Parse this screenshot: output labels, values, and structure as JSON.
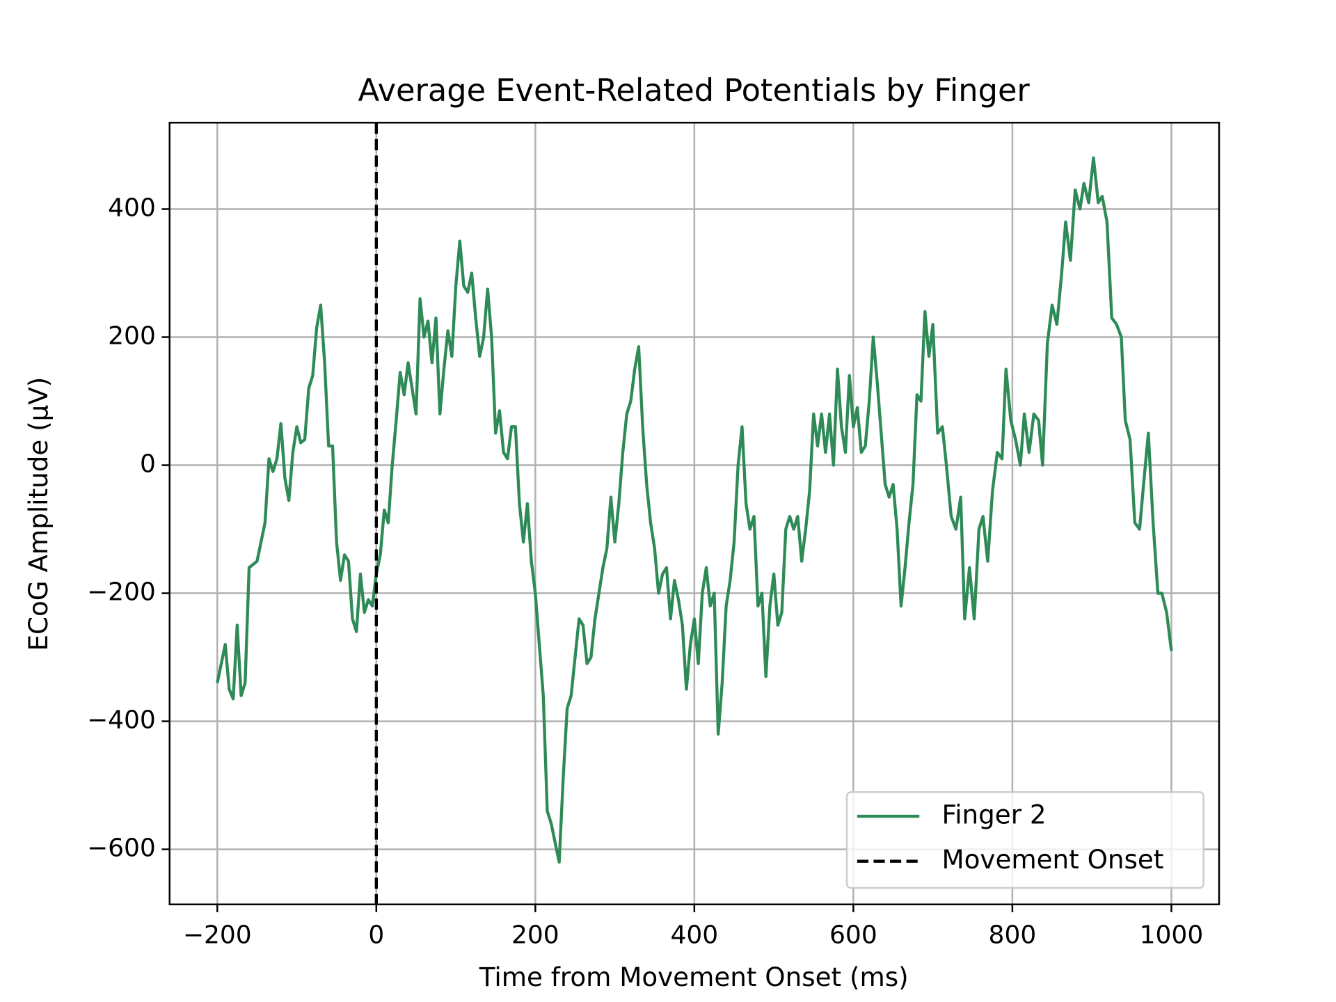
{
  "chart_data": {
    "type": "line",
    "title": "Average Event-Related Potentials by Finger",
    "x_label": "Time from Movement Onset (ms)",
    "y_label": "ECoG Amplitude (µV)",
    "x": [
      -200,
      -190,
      -185,
      -180,
      -175,
      -170,
      -165,
      -160,
      -150,
      -140,
      -135,
      -130,
      -125,
      -120,
      -115,
      -110,
      -105,
      -100,
      -95,
      -90,
      -85,
      -80,
      -75,
      -70,
      -65,
      -60,
      -55,
      -50,
      -45,
      -40,
      -35,
      -30,
      -25,
      -20,
      -15,
      -10,
      -5,
      0,
      5,
      10,
      15,
      20,
      25,
      30,
      35,
      40,
      45,
      50,
      55,
      60,
      65,
      70,
      75,
      80,
      85,
      90,
      95,
      100,
      105,
      110,
      115,
      120,
      125,
      130,
      135,
      140,
      145,
      150,
      155,
      160,
      165,
      170,
      175,
      180,
      185,
      190,
      195,
      200,
      205,
      210,
      215,
      220,
      225,
      230,
      235,
      240,
      245,
      250,
      255,
      260,
      265,
      270,
      275,
      280,
      285,
      290,
      295,
      300,
      305,
      310,
      315,
      320,
      325,
      330,
      335,
      340,
      345,
      350,
      355,
      360,
      365,
      370,
      375,
      380,
      385,
      390,
      395,
      400,
      405,
      410,
      415,
      420,
      425,
      430,
      435,
      440,
      445,
      450,
      455,
      460,
      465,
      470,
      475,
      480,
      485,
      490,
      495,
      500,
      505,
      510,
      515,
      520,
      525,
      530,
      535,
      540,
      545,
      550,
      555,
      560,
      565,
      570,
      575,
      580,
      585,
      590,
      595,
      600,
      605,
      610,
      615,
      620,
      625,
      630,
      635,
      640,
      645,
      650,
      655,
      660,
      665,
      670,
      675,
      680,
      685,
      690,
      695,
      700,
      706,
      712,
      717,
      723,
      729,
      735,
      740,
      746,
      752,
      758,
      763,
      769,
      775,
      781,
      787,
      792,
      798,
      804,
      810,
      815,
      821,
      827,
      833,
      838,
      844,
      850,
      856,
      862,
      867,
      873,
      879,
      885,
      890,
      896,
      902,
      908,
      913,
      919,
      925,
      931,
      937,
      942,
      948,
      954,
      960,
      965,
      971,
      977,
      983,
      988,
      994,
      1000
    ],
    "series": [
      {
        "name": "Finger 2",
        "color": "#2e8b57",
        "values": [
          -340,
          -280,
          -350,
          -365,
          -250,
          -360,
          -340,
          -160,
          -150,
          -90,
          10,
          -10,
          10,
          65,
          -20,
          -55,
          20,
          60,
          35,
          40,
          120,
          140,
          215,
          250,
          160,
          30,
          30,
          -120,
          -180,
          -140,
          -150,
          -240,
          -260,
          -170,
          -230,
          -210,
          -220,
          -170,
          -140,
          -70,
          -90,
          0,
          70,
          145,
          110,
          160,
          120,
          80,
          260,
          200,
          225,
          160,
          230,
          80,
          150,
          210,
          170,
          280,
          350,
          280,
          270,
          300,
          230,
          170,
          200,
          275,
          200,
          50,
          85,
          20,
          10,
          60,
          60,
          -60,
          -120,
          -60,
          -150,
          -200,
          -280,
          -360,
          -540,
          -560,
          -590,
          -620,
          -490,
          -380,
          -360,
          -300,
          -240,
          -250,
          -310,
          -300,
          -240,
          -200,
          -160,
          -130,
          -50,
          -120,
          -60,
          20,
          80,
          100,
          150,
          185,
          60,
          -30,
          -90,
          -130,
          -200,
          -170,
          -160,
          -240,
          -180,
          -210,
          -250,
          -350,
          -280,
          -240,
          -310,
          -200,
          -160,
          -220,
          -200,
          -420,
          -340,
          -220,
          -180,
          -120,
          0,
          60,
          -60,
          -100,
          -80,
          -220,
          -200,
          -330,
          -220,
          -170,
          -250,
          -230,
          -100,
          -80,
          -100,
          -80,
          -150,
          -100,
          -40,
          80,
          30,
          80,
          20,
          80,
          0,
          150,
          60,
          20,
          140,
          60,
          90,
          20,
          30,
          100,
          200,
          130,
          50,
          -30,
          -50,
          -30,
          -100,
          -220,
          -160,
          -90,
          -30,
          110,
          100,
          240,
          170,
          220,
          50,
          60,
          0,
          -80,
          -100,
          -50,
          -240,
          -160,
          -240,
          -100,
          -80,
          -150,
          -40,
          20,
          10,
          150,
          70,
          40,
          0,
          80,
          20,
          80,
          70,
          0,
          190,
          250,
          220,
          300,
          380,
          320,
          430,
          400,
          440,
          410,
          480,
          410,
          420,
          380,
          230,
          220,
          200,
          70,
          40,
          -90,
          -100,
          -30,
          50,
          -90,
          -200,
          -200,
          -230,
          -290
        ]
      }
    ],
    "vline": {
      "name": "Movement Onset",
      "x": 0,
      "color": "#000000"
    },
    "xlim": [
      -260,
      1060
    ],
    "ylim": [
      -686,
      535
    ],
    "xticks": [
      {
        "value": -200,
        "label": "−200"
      },
      0,
      200,
      400,
      600,
      800,
      1000
    ],
    "yticks": [
      {
        "value": -600,
        "label": "−600"
      },
      {
        "value": -400,
        "label": "−400"
      },
      {
        "value": -200,
        "label": "−200"
      },
      0,
      200,
      400
    ],
    "grid": true,
    "legend": "lower right"
  }
}
